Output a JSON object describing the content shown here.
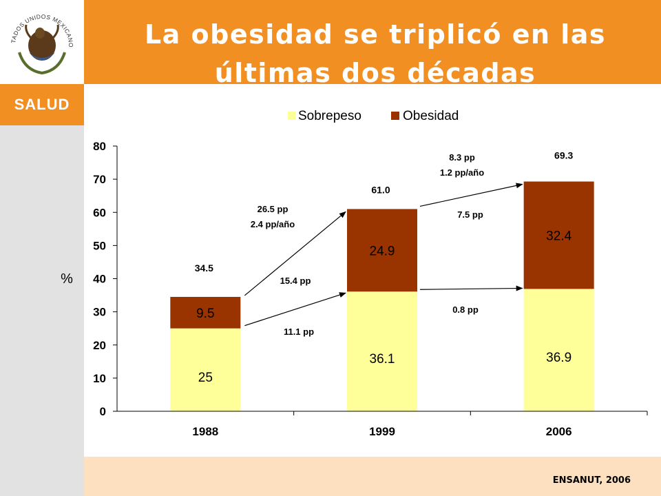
{
  "header": {
    "title": "La obesidad se triplicó en las últimas dos décadas"
  },
  "sidebar": {
    "seal_text": "ESTADOS UNIDOS MEXICANOS",
    "section_label": "SALUD"
  },
  "footer": {
    "source": "ENSANUT, 2006"
  },
  "colors": {
    "sobrepeso": "#ffff99",
    "obesidad": "#993300",
    "accent": "#f28f22",
    "footer": "#fde0c0",
    "sidebar": "#e2e2e2"
  },
  "chart_data": {
    "type": "bar",
    "stacked": true,
    "categories": [
      "1988",
      "1999",
      "2006"
    ],
    "series": [
      {
        "name": "Sobrepeso",
        "values": [
          25,
          36.1,
          36.9
        ],
        "labels": [
          "25",
          "36.1",
          "36.9"
        ]
      },
      {
        "name": "Obesidad",
        "values": [
          9.5,
          24.9,
          32.4
        ],
        "labels": [
          "9.5",
          "24.9",
          "32.4"
        ]
      }
    ],
    "totals": [
      "34.5",
      "61.0",
      "69.3"
    ],
    "ylabel": "%",
    "ylim": [
      0,
      80
    ],
    "yticks": [
      0,
      10,
      20,
      30,
      40,
      50,
      60,
      70,
      80
    ],
    "legend": "top",
    "grid": false,
    "annotations": [
      {
        "lines": [
          "26.5 pp",
          "2.4 pp/año"
        ]
      },
      {
        "lines": [
          "15.4 pp"
        ]
      },
      {
        "lines": [
          "11.1 pp"
        ]
      },
      {
        "lines": [
          "8.3 pp",
          "1.2 pp/año"
        ]
      },
      {
        "lines": [
          "7.5 pp"
        ]
      },
      {
        "lines": [
          "0.8 pp"
        ]
      }
    ]
  }
}
